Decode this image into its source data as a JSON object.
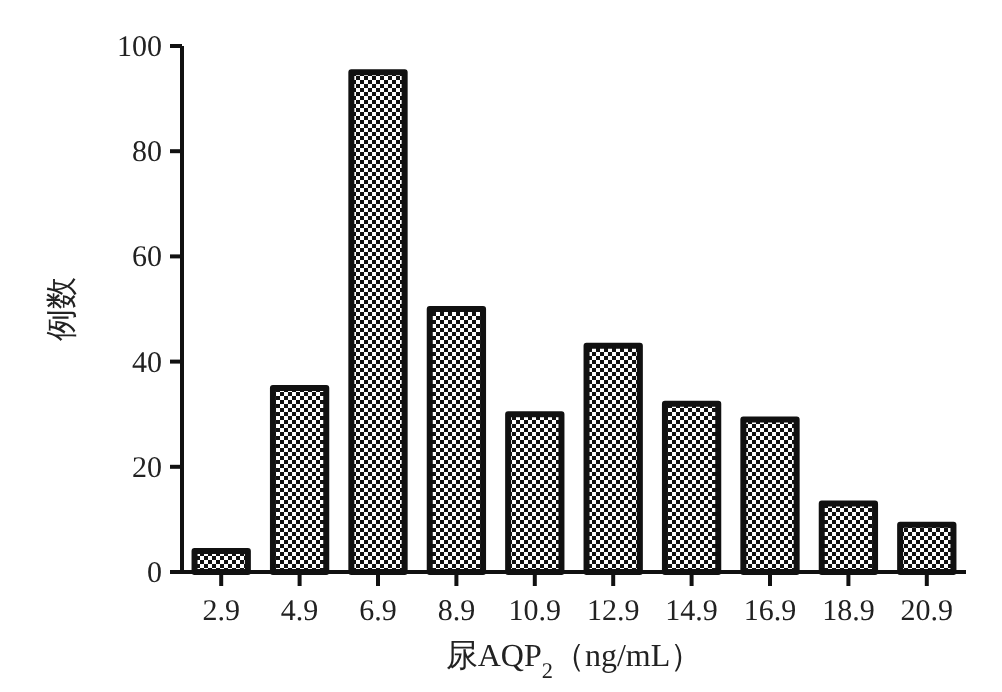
{
  "chart_data": {
    "type": "bar",
    "xlabel": "尿AQP$_{2}$（ng/mL）",
    "ylabel": "例数",
    "categories": [
      "2.9",
      "4.9",
      "6.9",
      "8.9",
      "10.9",
      "12.9",
      "14.9",
      "16.9",
      "18.9",
      "20.9"
    ],
    "values": [
      4,
      35,
      95,
      50,
      30,
      43,
      32,
      29,
      13,
      9
    ],
    "color": "#111111",
    "ylim": [
      0,
      100
    ],
    "yticks": [
      0,
      20,
      40,
      60,
      80,
      100
    ]
  }
}
